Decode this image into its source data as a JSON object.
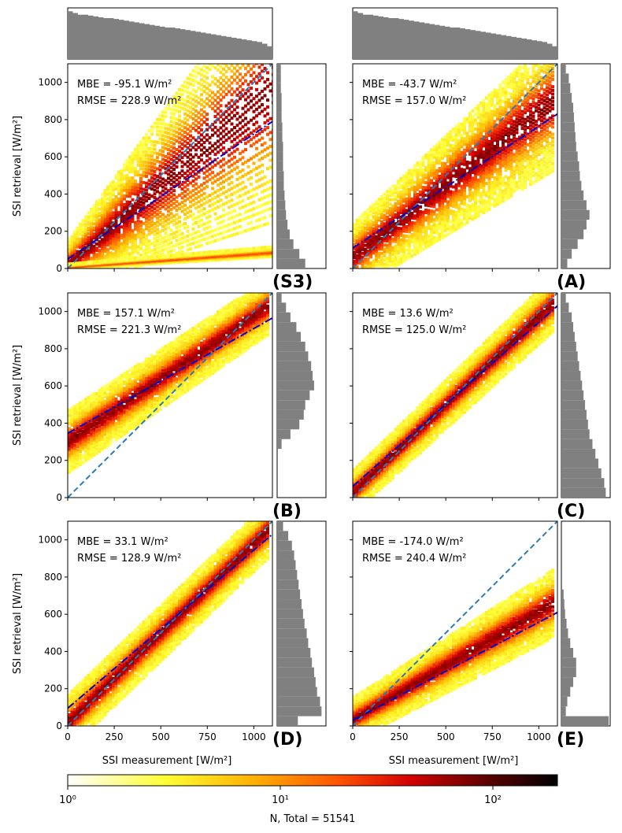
{
  "figure": {
    "y_axis_label": "SSI retrieval [W/m²]",
    "x_axis_label": "SSI measurement [W/m²]",
    "colorbar_label": "N, Total = 51541",
    "colorbar_ticks": [
      "10⁰",
      "10¹",
      "10²"
    ],
    "colorbar_range": [
      1,
      200
    ],
    "colormap": [
      "#ffffff",
      "#ffff33",
      "#ffb000",
      "#ff5500",
      "#d40000",
      "#5a0000",
      "#000000"
    ],
    "identity_line_color": "#2b7bb9",
    "fit_line_color": "#0000cc",
    "histogram_color": "#808080"
  },
  "chart_data": [
    {
      "type": "heatmap",
      "label": "(S3)",
      "mbe_text": "MBE = -95.1 W/m²",
      "rmse_text": "RMSE = 228.9 W/m²",
      "xlim": [
        0,
        1100
      ],
      "ylim": [
        0,
        1100
      ],
      "xticks": [
        0,
        250,
        500,
        750,
        1000
      ],
      "yticks": [
        0,
        200,
        400,
        600,
        800,
        1000
      ],
      "identity_line": [
        [
          0,
          0
        ],
        [
          1100,
          1100
        ]
      ],
      "fit_line": [
        [
          0,
          50
        ],
        [
          1100,
          790
        ]
      ],
      "bands": [
        {
          "x": [
            0,
            1100
          ],
          "center": [
            20,
            960
          ],
          "spread": [
            40,
            210
          ],
          "density": 1.0
        },
        {
          "x": [
            0,
            1100
          ],
          "center": [
            5,
            85
          ],
          "spread": [
            4,
            8
          ],
          "density": 0.6
        }
      ],
      "hist_y": [
        38,
        30,
        22,
        17,
        14,
        12,
        11,
        10,
        9,
        9,
        8,
        8,
        8,
        7,
        7,
        6,
        6,
        6,
        5,
        5,
        5
      ]
    },
    {
      "type": "heatmap",
      "label": "(A)",
      "mbe_text": "MBE = -43.7 W/m²",
      "rmse_text": "RMSE = 157.0 W/m²",
      "xlim": [
        0,
        1100
      ],
      "ylim": [
        0,
        1100
      ],
      "xticks": [
        0,
        250,
        500,
        750,
        1000
      ],
      "yticks": [
        0,
        200,
        400,
        600,
        800,
        1000
      ],
      "identity_line": [
        [
          0,
          0
        ],
        [
          1100,
          1100
        ]
      ],
      "fit_line": [
        [
          0,
          110
        ],
        [
          1100,
          830
        ]
      ],
      "bands": [
        {
          "x": [
            0,
            1080
          ],
          "center": [
            60,
            900
          ],
          "spread": [
            55,
            110
          ],
          "density": 1.0
        }
      ],
      "hist_y": [
        8,
        14,
        22,
        30,
        34,
        38,
        34,
        30,
        27,
        25,
        24,
        22,
        20,
        19,
        18,
        17,
        16,
        14,
        12,
        10,
        6
      ]
    },
    {
      "type": "heatmap",
      "label": "(B)",
      "mbe_text": "MBE = 157.1 W/m²",
      "rmse_text": "RMSE = 221.3 W/m²",
      "xlim": [
        0,
        1100
      ],
      "ylim": [
        0,
        1100
      ],
      "xticks": [
        0,
        250,
        500,
        750,
        1000
      ],
      "yticks": [
        0,
        200,
        400,
        600,
        800,
        1000
      ],
      "identity_line": [
        [
          0,
          0
        ],
        [
          1100,
          1100
        ]
      ],
      "fit_line": [
        [
          0,
          345
        ],
        [
          1100,
          965
        ]
      ],
      "bands": [
        {
          "x": [
            0,
            1080
          ],
          "center": [
            300,
            1030
          ],
          "spread": [
            50,
            45
          ],
          "density": 1.0
        }
      ],
      "hist_y": [
        0,
        0,
        0,
        0,
        0,
        6,
        18,
        30,
        36,
        38,
        44,
        50,
        48,
        46,
        42,
        38,
        32,
        26,
        18,
        12,
        6
      ]
    },
    {
      "type": "heatmap",
      "label": "(C)",
      "mbe_text": "MBE = 13.6 W/m²",
      "rmse_text": "RMSE = 125.0 W/m²",
      "xlim": [
        0,
        1100
      ],
      "ylim": [
        0,
        1100
      ],
      "xticks": [
        0,
        250,
        500,
        750,
        1000
      ],
      "yticks": [
        0,
        200,
        400,
        600,
        800,
        1000
      ],
      "identity_line": [
        [
          0,
          0
        ],
        [
          1100,
          1100
        ]
      ],
      "fit_line": [
        [
          0,
          60
        ],
        [
          1100,
          1030
        ]
      ],
      "bands": [
        {
          "x": [
            0,
            1080
          ],
          "center": [
            30,
            1050
          ],
          "spread": [
            35,
            45
          ],
          "density": 1.0
        }
      ],
      "hist_y": [
        60,
        58,
        54,
        50,
        46,
        42,
        38,
        36,
        34,
        32,
        30,
        28,
        26,
        24,
        22,
        20,
        18,
        16,
        14,
        10,
        6
      ]
    },
    {
      "type": "heatmap",
      "label": "(D)",
      "mbe_text": "MBE = 33.1 W/m²",
      "rmse_text": "RMSE = 128.9 W/m²",
      "xlim": [
        0,
        1100
      ],
      "ylim": [
        0,
        1100
      ],
      "xticks": [
        0,
        250,
        500,
        750,
        1000
      ],
      "yticks": [
        0,
        200,
        400,
        600,
        800,
        1000
      ],
      "identity_line": [
        [
          0,
          0
        ],
        [
          1100,
          1100
        ]
      ],
      "fit_line": [
        [
          0,
          95
        ],
        [
          1100,
          1030
        ]
      ],
      "bands": [
        {
          "x": [
            0,
            1080
          ],
          "center": [
            20,
            1060
          ],
          "spread": [
            45,
            45
          ],
          "density": 1.0
        }
      ],
      "hist_y": [
        28,
        60,
        58,
        54,
        52,
        50,
        47,
        45,
        42,
        40,
        37,
        35,
        33,
        31,
        29,
        27,
        25,
        23,
        20,
        15,
        8
      ]
    },
    {
      "type": "heatmap",
      "label": "(E)",
      "mbe_text": "MBE = -174.0 W/m²",
      "rmse_text": "RMSE = 240.4 W/m²",
      "xlim": [
        0,
        1100
      ],
      "ylim": [
        0,
        1100
      ],
      "xticks": [
        0,
        250,
        500,
        750,
        1000
      ],
      "yticks": [
        0,
        200,
        400,
        600,
        800,
        1000
      ],
      "identity_line": [
        [
          0,
          0
        ],
        [
          1100,
          1100
        ]
      ],
      "fit_line": [
        [
          0,
          30
        ],
        [
          1100,
          610
        ]
      ],
      "bands": [
        {
          "x": [
            0,
            1080
          ],
          "center": [
            35,
            660
          ],
          "spread": [
            35,
            55
          ],
          "density": 1.0
        }
      ],
      "hist_y": [
        64,
        6,
        8,
        12,
        16,
        20,
        20,
        16,
        12,
        9,
        7,
        5,
        4,
        3,
        0,
        0,
        0,
        0,
        0,
        0,
        0
      ]
    }
  ],
  "top_histograms": [
    {
      "column": "left",
      "values": [
        56,
        54,
        52,
        52,
        51,
        50,
        49,
        48,
        48,
        47,
        46,
        45,
        44,
        43,
        42,
        41,
        40,
        39,
        38,
        37,
        37,
        36,
        35,
        34,
        33,
        32,
        31,
        30,
        29,
        28,
        27,
        26,
        25,
        24,
        23,
        22,
        21,
        20,
        18,
        15
      ]
    },
    {
      "column": "right",
      "values": [
        56,
        54,
        52,
        52,
        51,
        50,
        49,
        48,
        48,
        47,
        46,
        45,
        44,
        43,
        42,
        41,
        40,
        39,
        38,
        37,
        37,
        36,
        35,
        34,
        33,
        32,
        31,
        30,
        29,
        28,
        27,
        26,
        25,
        24,
        23,
        22,
        21,
        20,
        18,
        15
      ]
    }
  ]
}
